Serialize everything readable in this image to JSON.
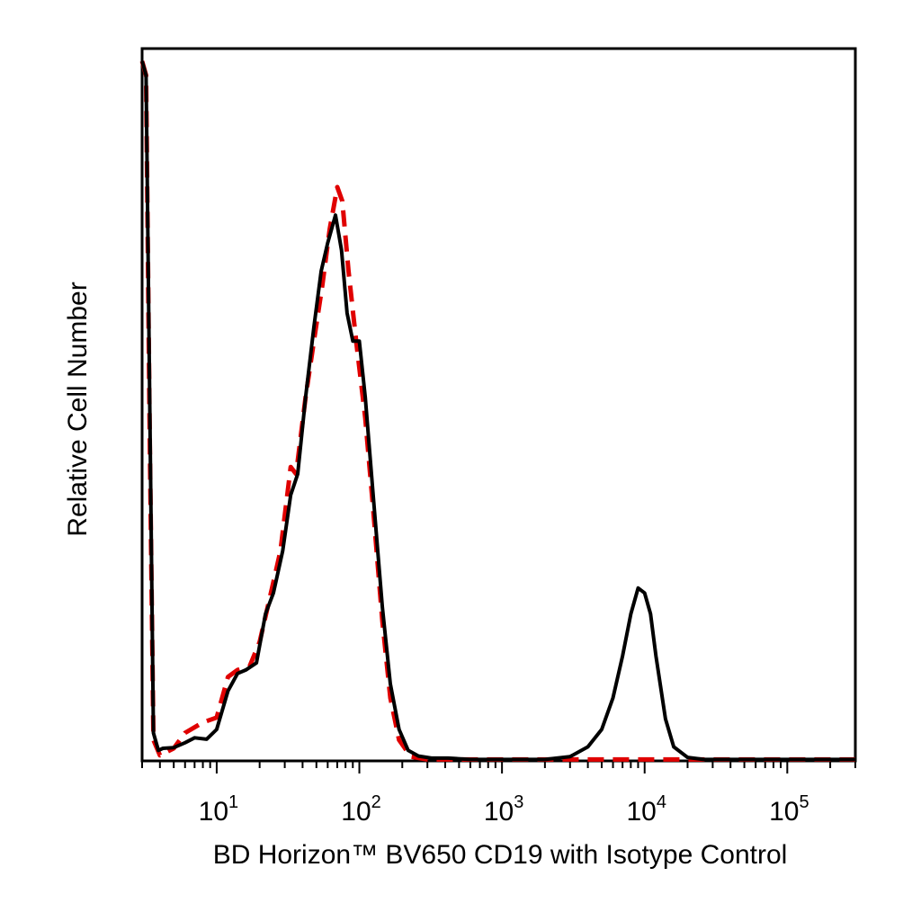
{
  "chart_data": {
    "type": "line",
    "title": "",
    "xlabel": "BD Horizon™ BV650 CD19 with Isotype Control",
    "ylabel": "Relative Cell Number",
    "x_scale": "log",
    "xlim": [
      3,
      300000
    ],
    "ylim": [
      0,
      1
    ],
    "grid": false,
    "legend": "none",
    "x_tick_labels": [
      {
        "value": 10,
        "base": "10",
        "exp": "1"
      },
      {
        "value": 100,
        "base": "10",
        "exp": "2"
      },
      {
        "value": 1000,
        "base": "10",
        "exp": "3"
      },
      {
        "value": 10000,
        "base": "10",
        "exp": "4"
      },
      {
        "value": 100000,
        "base": "10",
        "exp": "5"
      }
    ],
    "series": [
      {
        "color": "#000000",
        "style": "solid",
        "points": [
          [
            3.0,
            1.0
          ],
          [
            3.2,
            0.98
          ],
          [
            3.4,
            0.5
          ],
          [
            3.6,
            0.04
          ],
          [
            3.9,
            0.015
          ],
          [
            4.2,
            0.018
          ],
          [
            5.0,
            0.019
          ],
          [
            6.0,
            0.026
          ],
          [
            7.0,
            0.033
          ],
          [
            8.5,
            0.031
          ],
          [
            10.0,
            0.045
          ],
          [
            12.0,
            0.1
          ],
          [
            14.0,
            0.125
          ],
          [
            16.0,
            0.13
          ],
          [
            19.0,
            0.14
          ],
          [
            22.0,
            0.21
          ],
          [
            25.0,
            0.24
          ],
          [
            29.0,
            0.3
          ],
          [
            33.0,
            0.38
          ],
          [
            37.0,
            0.41
          ],
          [
            42.0,
            0.52
          ],
          [
            48.0,
            0.62
          ],
          [
            54.0,
            0.7
          ],
          [
            60.0,
            0.74
          ],
          [
            68.0,
            0.78
          ],
          [
            75.0,
            0.73
          ],
          [
            82.0,
            0.64
          ],
          [
            90.0,
            0.6
          ],
          [
            100.0,
            0.6
          ],
          [
            110.0,
            0.52
          ],
          [
            125.0,
            0.38
          ],
          [
            145.0,
            0.22
          ],
          [
            165.0,
            0.11
          ],
          [
            190.0,
            0.045
          ],
          [
            220.0,
            0.015
          ],
          [
            260.0,
            0.007
          ],
          [
            320.0,
            0.004
          ],
          [
            420.0,
            0.004
          ],
          [
            600.0,
            0.002
          ],
          [
            1000.0,
            0.002
          ],
          [
            2000.0,
            0.002
          ],
          [
            3000.0,
            0.006
          ],
          [
            4000.0,
            0.02
          ],
          [
            5000.0,
            0.045
          ],
          [
            6000.0,
            0.09
          ],
          [
            7000.0,
            0.15
          ],
          [
            8000.0,
            0.21
          ],
          [
            9000.0,
            0.247
          ],
          [
            10000.0,
            0.24
          ],
          [
            11000.0,
            0.21
          ],
          [
            12000.0,
            0.15
          ],
          [
            14000.0,
            0.06
          ],
          [
            16000.0,
            0.02
          ],
          [
            20000.0,
            0.005
          ],
          [
            26000.0,
            0.002
          ],
          [
            300000.0,
            0.002
          ]
        ]
      },
      {
        "color": "#e00000",
        "style": "dashed",
        "points": [
          [
            3.0,
            1.0
          ],
          [
            3.2,
            0.98
          ],
          [
            3.4,
            0.45
          ],
          [
            3.6,
            0.03
          ],
          [
            4.0,
            0.008
          ],
          [
            5.0,
            0.018
          ],
          [
            6.0,
            0.04
          ],
          [
            8.0,
            0.055
          ],
          [
            10.0,
            0.062
          ],
          [
            12.0,
            0.12
          ],
          [
            14.0,
            0.13
          ],
          [
            17.0,
            0.135
          ],
          [
            20.0,
            0.17
          ],
          [
            24.0,
            0.24
          ],
          [
            28.0,
            0.3
          ],
          [
            33.0,
            0.42
          ],
          [
            36.0,
            0.41
          ],
          [
            42.0,
            0.52
          ],
          [
            48.0,
            0.6
          ],
          [
            55.0,
            0.68
          ],
          [
            62.0,
            0.76
          ],
          [
            70.0,
            0.82
          ],
          [
            76.0,
            0.8
          ],
          [
            84.0,
            0.7
          ],
          [
            95.0,
            0.6
          ],
          [
            110.0,
            0.49
          ],
          [
            125.0,
            0.36
          ],
          [
            145.0,
            0.2
          ],
          [
            165.0,
            0.09
          ],
          [
            190.0,
            0.03
          ],
          [
            230.0,
            0.006
          ],
          [
            300.0,
            0.002
          ],
          [
            300000.0,
            0.002
          ]
        ]
      }
    ]
  }
}
